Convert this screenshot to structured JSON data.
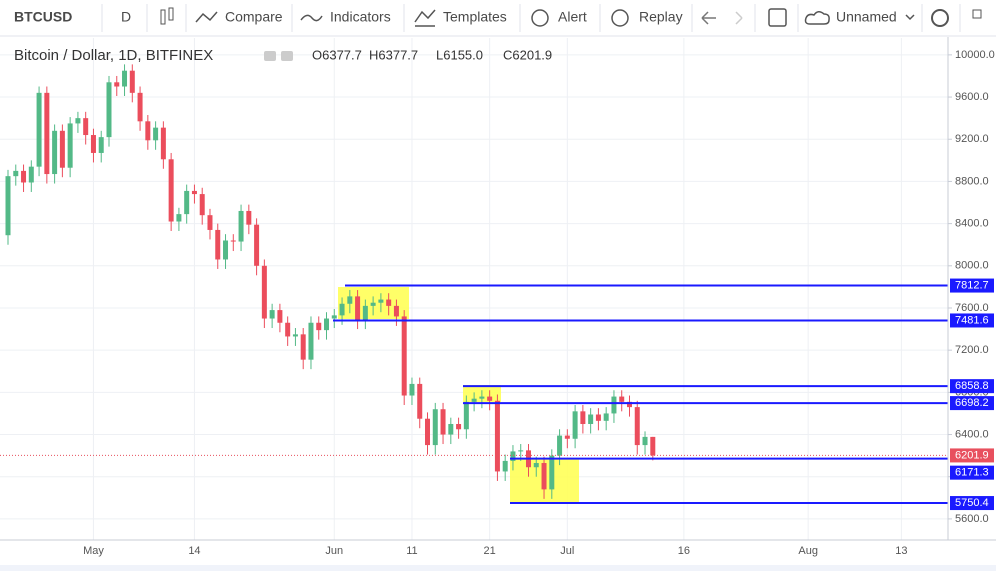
{
  "toolbar": {
    "symbol": "BTCUSD",
    "interval": "D",
    "buttons": [
      "Compare",
      "Indicators",
      "Templates",
      "Alert",
      "Replay"
    ],
    "layout_name": "Unnamed"
  },
  "chart_data": {
    "type": "candlestick",
    "title": "Bitcoin / Dollar, 1D, BITFINEX",
    "ohlc_labels": [
      "O6377.7",
      "H6377.7",
      "L6155.0",
      "C6201.9"
    ],
    "categories": [
      null,
      null,
      null,
      null,
      null,
      null,
      null,
      null,
      null,
      null,
      null,
      "May",
      null,
      null,
      null,
      null,
      null,
      null,
      null,
      null,
      null,
      null,
      null,
      null,
      "14",
      null,
      null,
      null,
      null,
      null,
      null,
      null,
      null,
      null,
      null,
      null,
      null,
      null,
      null,
      null,
      null,
      null,
      "Jun",
      null,
      null,
      null,
      null,
      null,
      null,
      null,
      null,
      null,
      "11",
      null,
      null,
      null,
      null,
      null,
      null,
      null,
      null,
      null,
      "21",
      null,
      null,
      null,
      null,
      null,
      null,
      null,
      null,
      null,
      "Jul",
      null,
      null,
      null,
      null,
      null,
      null,
      null,
      null,
      null,
      null,
      null,
      null,
      null,
      null,
      "16",
      null,
      null,
      null,
      null,
      null,
      null,
      null,
      null,
      null,
      null,
      null,
      null,
      null,
      null,
      null,
      "Aug",
      null,
      null,
      null,
      null,
      null,
      null,
      null,
      null,
      null,
      null,
      null,
      "13",
      null,
      null,
      null,
      null,
      null,
      null
    ],
    "open": [
      8290,
      8850,
      8900,
      8790,
      8940,
      9640,
      8870,
      9280,
      8930,
      9350,
      9400,
      9240,
      9070,
      9220,
      9740,
      9700,
      9850,
      9640,
      9370,
      9190,
      9310,
      9010,
      8420,
      8490,
      8710,
      8680,
      8480,
      8340,
      8060,
      8240,
      8230,
      8520,
      8390,
      8000,
      7500,
      7580,
      7460,
      7330,
      7350,
      7110,
      7460,
      7390,
      7500,
      7530,
      7640,
      7710,
      7490,
      7620,
      7650,
      7680,
      7620,
      7520,
      6770,
      6880,
      6550,
      6300,
      6640,
      6400,
      6500,
      6450,
      6710,
      6740,
      6760,
      6720,
      6050,
      6150,
      6240,
      6250,
      6090,
      6130,
      5880,
      6200,
      6390,
      6360,
      6620,
      6500,
      6590,
      6530,
      6600,
      6760,
      6710,
      6660,
      6300,
      6377.7,
      null,
      null,
      null,
      null,
      null,
      null,
      null,
      null,
      null,
      null,
      null,
      null,
      null,
      null,
      null,
      null,
      null,
      null,
      null,
      null,
      null,
      null,
      null,
      null,
      null,
      null,
      null,
      null,
      null,
      null,
      null,
      null,
      null,
      null,
      null,
      null,
      null,
      null
    ],
    "high": [
      8910,
      8960,
      8960,
      9000,
      9700,
      9700,
      9340,
      9340,
      9410,
      9460,
      9460,
      9300,
      9280,
      9800,
      9800,
      9910,
      9910,
      9700,
      9430,
      9370,
      9370,
      9070,
      8550,
      8770,
      8770,
      8740,
      8540,
      8400,
      8300,
      8300,
      8580,
      8580,
      8450,
      8060,
      7640,
      7640,
      7520,
      7410,
      7410,
      7520,
      7520,
      7560,
      7590,
      7700,
      7770,
      7770,
      7680,
      7710,
      7740,
      7740,
      7680,
      7580,
      6940,
      6940,
      6610,
      6700,
      6700,
      6560,
      6560,
      6770,
      6800,
      6820,
      6820,
      6780,
      6210,
      6300,
      6310,
      6310,
      6190,
      6190,
      6260,
      6450,
      6450,
      6680,
      6680,
      6650,
      6650,
      6660,
      6820,
      6820,
      6770,
      6720,
      6430,
      6377.7,
      null,
      null,
      null,
      null,
      null,
      null,
      null,
      null,
      null,
      null,
      null,
      null,
      null,
      null,
      null,
      null,
      null,
      null,
      null,
      null,
      null,
      null,
      null,
      null,
      null,
      null,
      null,
      null,
      null,
      null,
      null,
      null,
      null,
      null,
      null,
      null,
      null,
      null
    ],
    "low": [
      8200,
      8760,
      8700,
      8700,
      8850,
      8780,
      8780,
      8840,
      8840,
      9260,
      9150,
      8980,
      8980,
      9130,
      9610,
      9610,
      9550,
      9280,
      9100,
      9100,
      8920,
      8330,
      8330,
      8400,
      8590,
      8390,
      8250,
      7970,
      7970,
      8140,
      8140,
      8300,
      7910,
      7410,
      7410,
      7370,
      7240,
      7240,
      7020,
      7020,
      7300,
      7300,
      7410,
      7440,
      7550,
      7400,
      7400,
      7530,
      7560,
      7530,
      7430,
      6680,
      6680,
      6460,
      6210,
      6210,
      6310,
      6310,
      6360,
      6360,
      6620,
      6650,
      6630,
      5960,
      5960,
      6060,
      6150,
      6000,
      6000,
      5790,
      5790,
      6110,
      6270,
      6270,
      6410,
      6410,
      6440,
      6440,
      6510,
      6620,
      6570,
      6210,
      6210,
      6155.0,
      null,
      null,
      null,
      null,
      null,
      null,
      null,
      null,
      null,
      null,
      null,
      null,
      null,
      null,
      null,
      null,
      null,
      null,
      null,
      null,
      null,
      null,
      null,
      null,
      null,
      null,
      null,
      null,
      null,
      null,
      null,
      null,
      null,
      null,
      null,
      null,
      null,
      null
    ],
    "close": [
      8850,
      8900,
      8790,
      8940,
      9640,
      8870,
      9280,
      8930,
      9350,
      9400,
      9240,
      9070,
      9220,
      9740,
      9700,
      9850,
      9640,
      9370,
      9190,
      9310,
      9010,
      8420,
      8490,
      8710,
      8680,
      8480,
      8340,
      8060,
      8240,
      8230,
      8520,
      8390,
      8000,
      7500,
      7580,
      7460,
      7330,
      7350,
      7110,
      7460,
      7390,
      7500,
      7530,
      7640,
      7710,
      7490,
      7620,
      7650,
      7680,
      7620,
      7520,
      6770,
      6880,
      6550,
      6300,
      6640,
      6400,
      6500,
      6450,
      6710,
      6740,
      6760,
      6720,
      6050,
      6150,
      6240,
      6250,
      6090,
      6130,
      5880,
      6200,
      6390,
      6360,
      6620,
      6500,
      6590,
      6530,
      6600,
      6760,
      6710,
      6660,
      6300,
      6377.7,
      6201.9,
      null,
      null,
      null,
      null,
      null,
      null,
      null,
      null,
      null,
      null,
      null,
      null,
      null,
      null,
      null,
      null,
      null,
      null,
      null,
      null,
      null,
      null,
      null,
      null,
      null,
      null,
      null,
      null,
      null,
      null,
      null,
      null,
      null,
      null,
      null,
      null,
      null,
      null
    ],
    "up_color": "#53b987",
    "down_color": "#eb4d5c",
    "ylim": [
      5400,
      10160
    ],
    "yticks": [
      {
        "value": 10000,
        "label": "10000.0"
      },
      {
        "value": 9600,
        "label": "9600.0"
      },
      {
        "value": 9200,
        "label": "9200.0"
      },
      {
        "value": 8800,
        "label": "8800.0"
      },
      {
        "value": 8400,
        "label": "8400.0"
      },
      {
        "value": 8000,
        "label": "8000.0"
      },
      {
        "value": 7600,
        "label": "7600.0"
      },
      {
        "value": 7200,
        "label": "7200.0"
      },
      {
        "value": 6800,
        "label": "6800.0"
      },
      {
        "value": 6400,
        "label": "6400.0"
      },
      {
        "value": 6000,
        "label": "6000.0"
      },
      {
        "value": 5600,
        "label": "5600.0"
      }
    ],
    "grid": true,
    "levels": [
      7812.7,
      7481.6,
      6858.8,
      6698.2,
      6171.3,
      5750.4
    ],
    "level_color": "#1a1aff",
    "last_price": 6201.9,
    "last_price_color": "#e8505e"
  }
}
